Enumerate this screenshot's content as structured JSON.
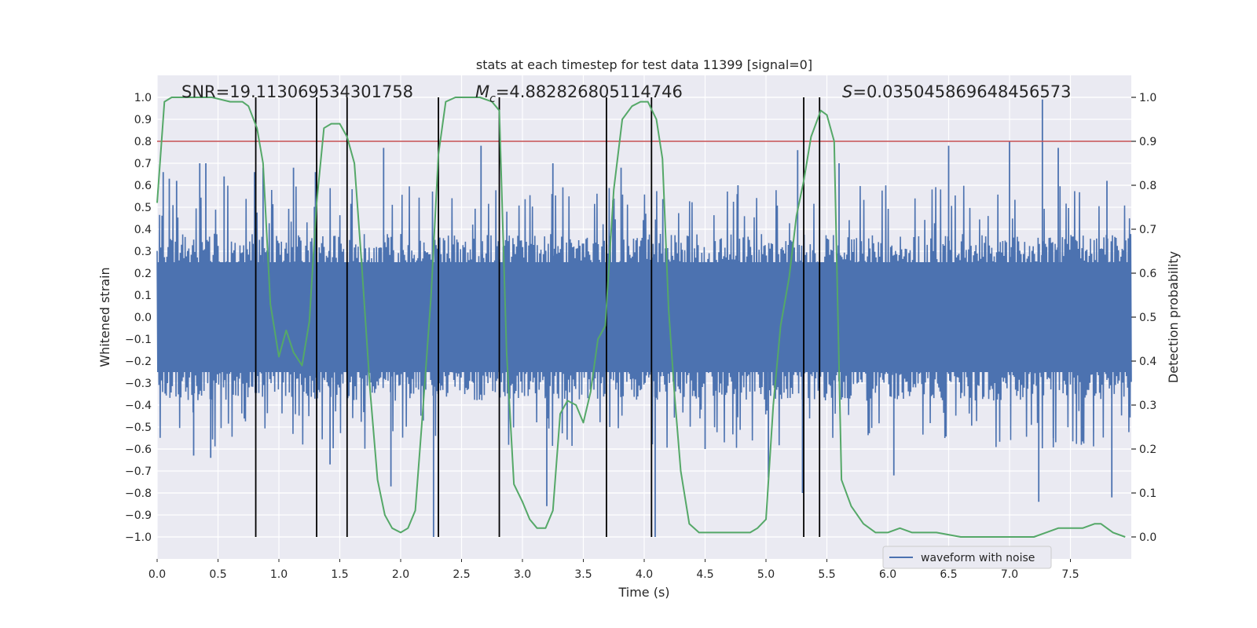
{
  "chart_data": {
    "type": "line",
    "title": "stats at each timestep for test data 11399 [signal=0]",
    "xlabel": "Time (s)",
    "ylabel": "Whitened strain",
    "y2label": "Detection probability",
    "xlim": [
      0.0,
      8.0
    ],
    "ylim": [
      -1.1,
      1.1
    ],
    "y2lim": [
      -0.05,
      1.05
    ],
    "x_ticks": [
      0.0,
      0.5,
      1.0,
      1.5,
      2.0,
      2.5,
      3.0,
      3.5,
      4.0,
      4.5,
      5.0,
      5.5,
      6.0,
      6.5,
      7.0,
      7.5
    ],
    "y_ticks": [
      -1.0,
      -0.9,
      -0.8,
      -0.7,
      -0.6,
      -0.5,
      -0.4,
      -0.3,
      -0.2,
      -0.1,
      0.0,
      0.1,
      0.2,
      0.3,
      0.4,
      0.5,
      0.6,
      0.7,
      0.8,
      0.9,
      1.0
    ],
    "y2_ticks": [
      0.0,
      0.1,
      0.2,
      0.3,
      0.4,
      0.5,
      0.6,
      0.7,
      0.8,
      0.9,
      1.0
    ],
    "annotations": {
      "snr": "SNR=19.113069534301758",
      "mc_symbol": "M",
      "mc_sub": "c",
      "mc_value": "=4.882826805114746",
      "s_symbol": "S",
      "s_value": "=0.035045869648456573"
    },
    "legend": {
      "label": "waveform with noise",
      "placement": "lower-right"
    },
    "threshold": {
      "value": 0.9,
      "axis": "right",
      "color": "#c44e52"
    },
    "vlines": [
      0.81,
      1.31,
      1.56,
      2.31,
      2.81,
      3.69,
      4.06,
      5.31,
      5.44
    ],
    "waveform": {
      "name": "waveform with noise",
      "color": "#4c72b0",
      "n_samples": 1600,
      "core_amplitude": 0.38,
      "spikes": [
        {
          "x": 0.05,
          "y": 0.66
        },
        {
          "x": 0.1,
          "y": 0.63
        },
        {
          "x": 0.16,
          "y": 0.62
        },
        {
          "x": 0.35,
          "y": 0.7
        },
        {
          "x": 0.4,
          "y": 0.7
        },
        {
          "x": 0.55,
          "y": 0.64
        },
        {
          "x": 0.8,
          "y": 0.66
        },
        {
          "x": 0.87,
          "y": 0.68
        },
        {
          "x": 1.12,
          "y": 0.68
        },
        {
          "x": 1.3,
          "y": 0.66
        },
        {
          "x": 1.86,
          "y": 0.77
        },
        {
          "x": 2.66,
          "y": 0.78
        },
        {
          "x": 3.25,
          "y": 0.7
        },
        {
          "x": 3.81,
          "y": 0.68
        },
        {
          "x": 4.77,
          "y": 0.6
        },
        {
          "x": 5.26,
          "y": 0.76
        },
        {
          "x": 5.6,
          "y": 0.7
        },
        {
          "x": 6.5,
          "y": 0.78
        },
        {
          "x": 7.0,
          "y": 0.8
        },
        {
          "x": 7.27,
          "y": 0.99
        },
        {
          "x": 7.4,
          "y": 0.77
        },
        {
          "x": 7.8,
          "y": 0.62
        },
        {
          "x": 0.3,
          "y": -0.63
        },
        {
          "x": 0.44,
          "y": -0.64
        },
        {
          "x": 1.42,
          "y": -0.67
        },
        {
          "x": 1.92,
          "y": -0.77
        },
        {
          "x": 2.27,
          "y": -1.0
        },
        {
          "x": 2.31,
          "y": -0.97
        },
        {
          "x": 3.2,
          "y": -0.86
        },
        {
          "x": 4.09,
          "y": -1.0
        },
        {
          "x": 4.5,
          "y": -0.6
        },
        {
          "x": 5.02,
          "y": -0.73
        },
        {
          "x": 5.3,
          "y": -0.8
        },
        {
          "x": 6.05,
          "y": -0.72
        },
        {
          "x": 7.24,
          "y": -0.84
        },
        {
          "x": 7.36,
          "y": -0.55
        },
        {
          "x": 7.84,
          "y": -0.82
        }
      ]
    },
    "probability": {
      "name": "detection probability",
      "color": "#55a868",
      "x": [
        0.0,
        0.06,
        0.12,
        0.2,
        0.3,
        0.45,
        0.6,
        0.7,
        0.75,
        0.82,
        0.87,
        0.93,
        1.0,
        1.06,
        1.12,
        1.19,
        1.25,
        1.31,
        1.37,
        1.43,
        1.5,
        1.56,
        1.62,
        1.68,
        1.75,
        1.81,
        1.87,
        1.93,
        2.0,
        2.06,
        2.12,
        2.18,
        2.25,
        2.31,
        2.37,
        2.45,
        2.55,
        2.65,
        2.75,
        2.81,
        2.87,
        2.93,
        3.0,
        3.06,
        3.12,
        3.19,
        3.25,
        3.31,
        3.37,
        3.44,
        3.5,
        3.56,
        3.62,
        3.68,
        3.75,
        3.82,
        3.9,
        3.97,
        4.03,
        4.1,
        4.15,
        4.2,
        4.25,
        4.3,
        4.37,
        4.45,
        4.6,
        4.75,
        4.87,
        4.93,
        5.0,
        5.06,
        5.12,
        5.19,
        5.25,
        5.31,
        5.37,
        5.45,
        5.5,
        5.56,
        5.62,
        5.7,
        5.8,
        5.9,
        6.0,
        6.1,
        6.2,
        6.3,
        6.4,
        6.6,
        6.8,
        7.0,
        7.2,
        7.3,
        7.4,
        7.5,
        7.6,
        7.7,
        7.75,
        7.85,
        7.95
      ],
      "y": [
        0.76,
        0.99,
        1.0,
        1.0,
        1.0,
        1.0,
        0.99,
        0.99,
        0.98,
        0.93,
        0.85,
        0.53,
        0.41,
        0.47,
        0.42,
        0.39,
        0.49,
        0.76,
        0.93,
        0.94,
        0.94,
        0.91,
        0.85,
        0.62,
        0.33,
        0.13,
        0.05,
        0.02,
        0.01,
        0.02,
        0.06,
        0.28,
        0.55,
        0.87,
        0.99,
        1.0,
        1.0,
        1.0,
        0.99,
        0.97,
        0.42,
        0.12,
        0.08,
        0.04,
        0.02,
        0.02,
        0.06,
        0.28,
        0.31,
        0.3,
        0.26,
        0.33,
        0.45,
        0.48,
        0.79,
        0.95,
        0.98,
        0.99,
        0.99,
        0.95,
        0.86,
        0.52,
        0.32,
        0.15,
        0.03,
        0.01,
        0.01,
        0.01,
        0.01,
        0.02,
        0.04,
        0.3,
        0.48,
        0.59,
        0.73,
        0.81,
        0.91,
        0.97,
        0.96,
        0.9,
        0.13,
        0.07,
        0.03,
        0.01,
        0.01,
        0.02,
        0.01,
        0.01,
        0.01,
        0.0,
        0.0,
        0.0,
        0.0,
        0.01,
        0.02,
        0.02,
        0.02,
        0.03,
        0.03,
        0.01,
        0.0
      ]
    }
  }
}
